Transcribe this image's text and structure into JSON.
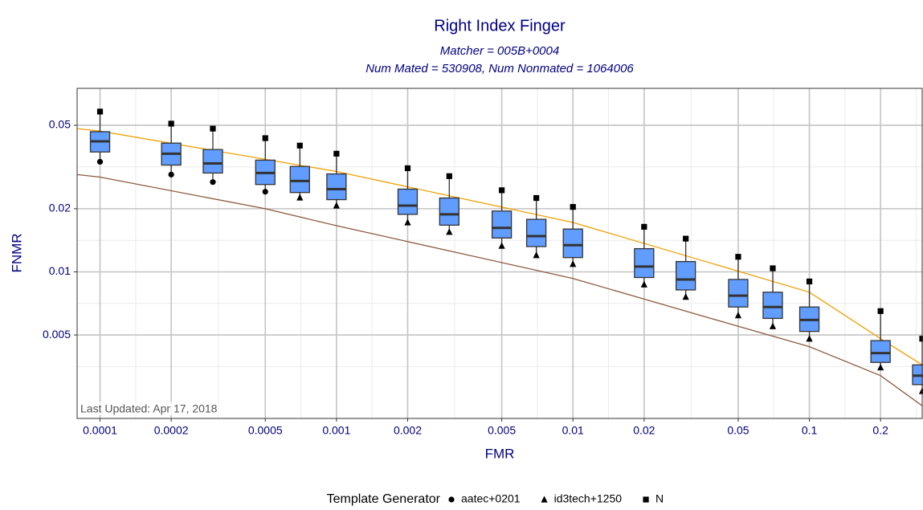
{
  "chart_data": {
    "type": "box",
    "title": "Right Index Finger",
    "subtitle": [
      "Matcher = 005B+0004",
      "Num Mated = 530908, Num Nonmated = 1064006"
    ],
    "x_label": "FMR",
    "y_label": "FNMR",
    "annotation": "Last Updated: Apr 17, 2018",
    "legend_title": "Template Generator",
    "log_x": true,
    "log_y": true,
    "grid": true,
    "legend_position": "bottom",
    "xlim": [
      8e-05,
      0.3
    ],
    "ylim": [
      0.002,
      0.075
    ],
    "xticks": [
      0.0001,
      0.0002,
      0.0005,
      0.001,
      0.002,
      0.005,
      0.01,
      0.02,
      0.05,
      0.1,
      0.2
    ],
    "yticks": [
      0.005,
      0.01,
      0.02,
      0.05
    ],
    "box_color": "#619CFF",
    "boxes": {
      "x": [
        0.0001,
        0.0002,
        0.0003,
        0.0005,
        0.0007,
        0.001,
        0.002,
        0.003,
        0.005,
        0.007,
        0.01,
        0.02,
        0.03,
        0.05,
        0.07,
        0.1,
        0.2,
        0.3
      ],
      "q1": [
        0.0373,
        0.0323,
        0.0296,
        0.0261,
        0.0239,
        0.0221,
        0.0188,
        0.0167,
        0.0145,
        0.0132,
        0.0117,
        0.0094,
        0.0082,
        0.0068,
        0.006,
        0.0052,
        0.0037,
        0.0029
      ],
      "median": [
        0.0419,
        0.0366,
        0.0329,
        0.0296,
        0.0271,
        0.0248,
        0.0207,
        0.0188,
        0.0162,
        0.0148,
        0.0134,
        0.0106,
        0.0092,
        0.0077,
        0.0068,
        0.0059,
        0.0041,
        0.0032
      ],
      "q3": [
        0.0466,
        0.0411,
        0.0383,
        0.0341,
        0.0318,
        0.0293,
        0.0248,
        0.0225,
        0.0195,
        0.0178,
        0.016,
        0.0129,
        0.0112,
        0.0092,
        0.008,
        0.0068,
        0.0047,
        0.0036
      ]
    },
    "series": [
      {
        "name": "aatec+0201",
        "shape": "circle",
        "color": "#000000",
        "values": [
          0.0335,
          0.0291,
          0.0268,
          0.0241,
          null,
          null,
          null,
          null,
          null,
          null,
          null,
          null,
          null,
          null,
          null,
          null,
          null,
          null
        ]
      },
      {
        "name": "id3tech+1250",
        "shape": "triangle",
        "color": "#000000",
        "values": [
          null,
          null,
          null,
          null,
          0.0226,
          0.0207,
          0.0172,
          0.0155,
          0.0133,
          0.012,
          0.0109,
          0.0087,
          0.0076,
          0.0062,
          0.0055,
          0.0048,
          0.0035,
          0.0027
        ]
      },
      {
        "name": "N",
        "shape": "square",
        "color": "#000000",
        "values": [
          0.0581,
          0.0509,
          0.0482,
          0.0434,
          0.04,
          0.0366,
          0.0312,
          0.0286,
          0.0245,
          0.0225,
          0.0204,
          0.0164,
          0.0144,
          0.0118,
          0.0104,
          0.009,
          0.0065,
          0.0048
        ]
      }
    ],
    "lines": [
      {
        "color": "#F0A000",
        "x": [
          8e-05,
          0.0001,
          0.001,
          0.01,
          0.1,
          0.2,
          0.3
        ],
        "values": [
          0.0482,
          0.0469,
          0.0301,
          0.0172,
          0.008,
          0.0048,
          0.0036
        ]
      },
      {
        "color": "#8B5A3C",
        "x": [
          8e-05,
          0.0001,
          0.0005,
          0.001,
          0.01,
          0.05,
          0.1,
          0.2,
          0.3
        ],
        "values": [
          0.0291,
          0.0283,
          0.02,
          0.0166,
          0.0093,
          0.0055,
          0.0044,
          0.0032,
          0.0023
        ]
      }
    ]
  }
}
